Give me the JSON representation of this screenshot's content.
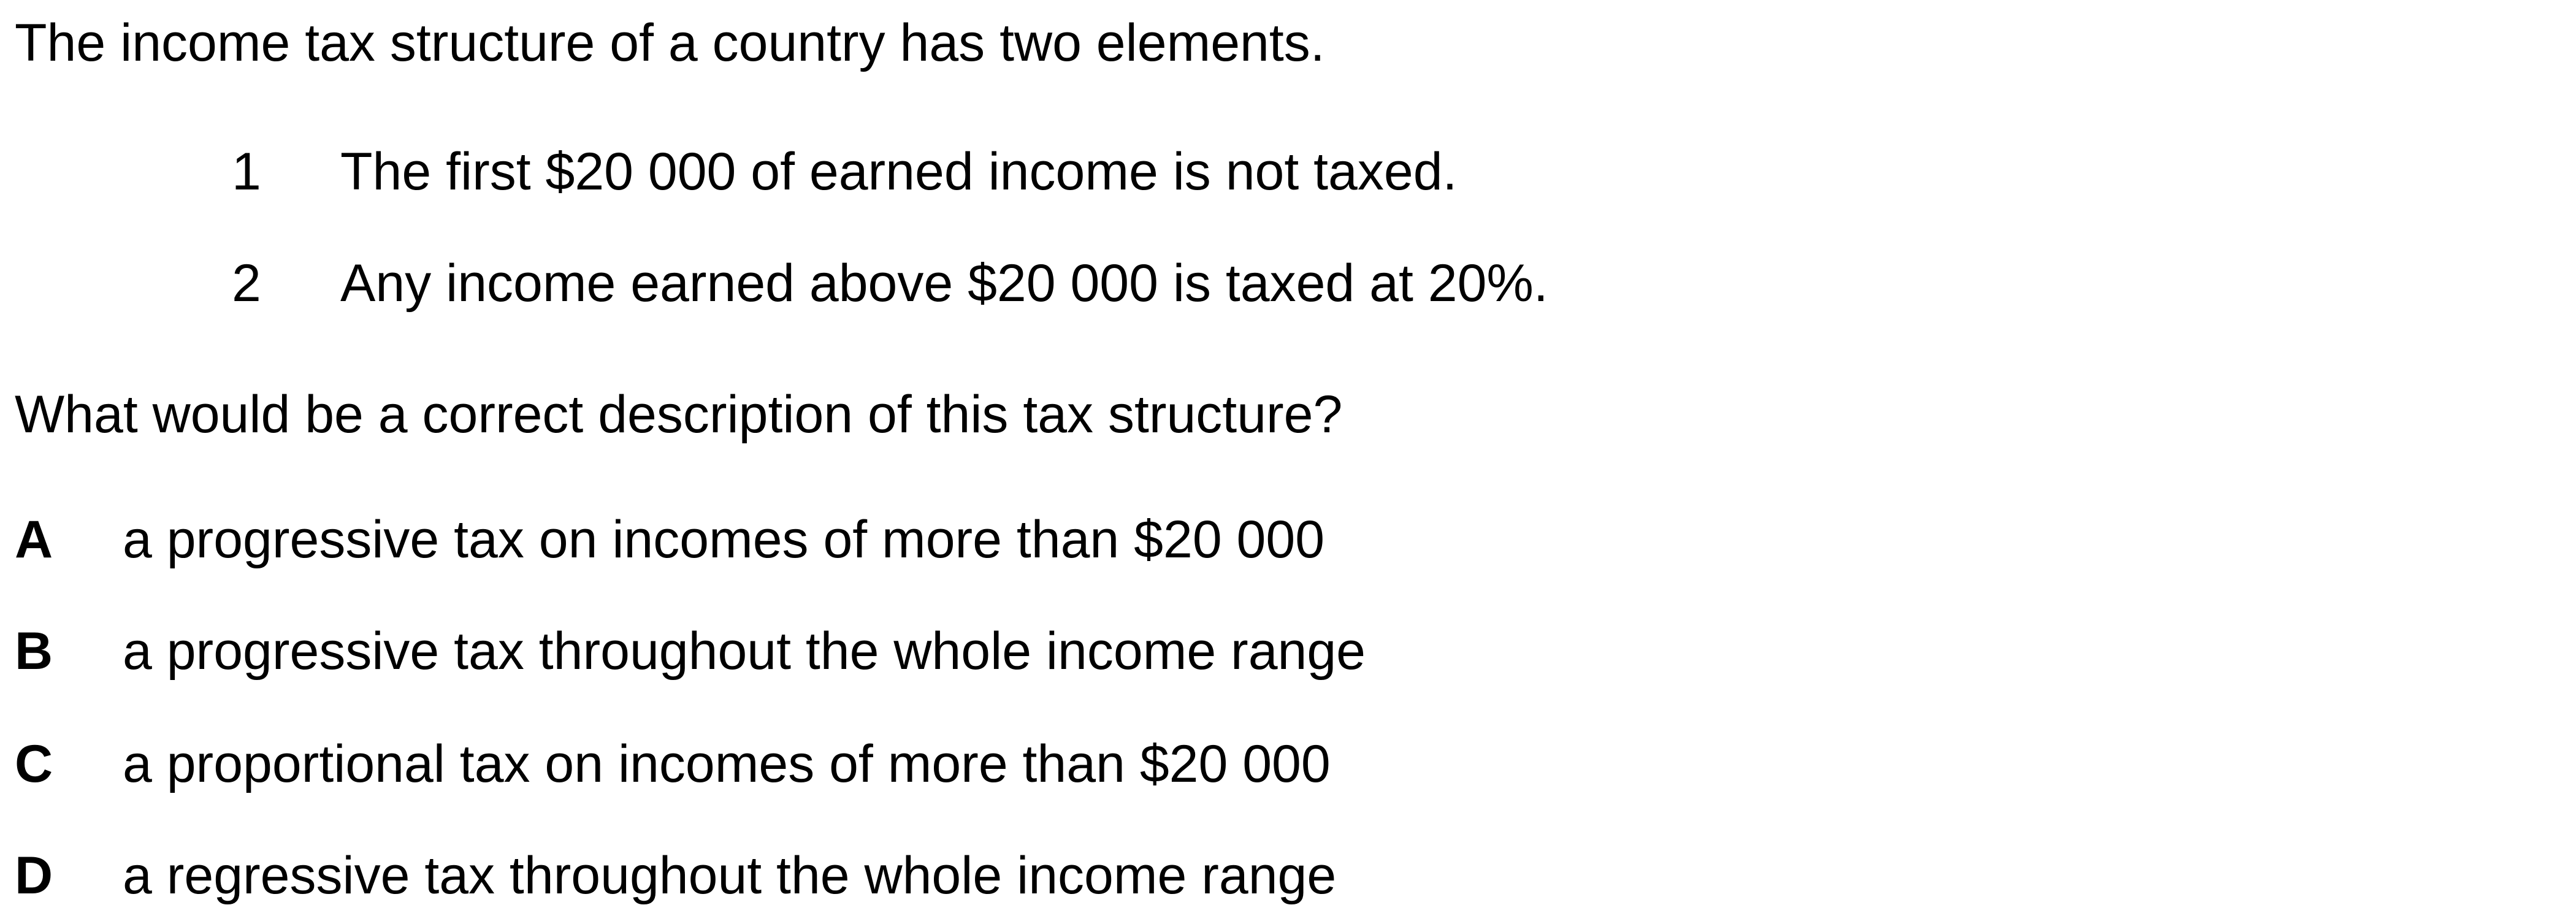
{
  "question": {
    "intro": "The income tax structure of a country has two elements.",
    "elements": [
      {
        "number": "1",
        "text": "The first $20 000 of earned income is not taxed."
      },
      {
        "number": "2",
        "text": "Any income earned above $20 000 is taxed at 20%."
      }
    ],
    "prompt": "What would be a correct description of this tax structure?",
    "options": [
      {
        "letter": "A",
        "text": "a progressive tax on incomes of more than $20 000"
      },
      {
        "letter": "B",
        "text": "a progressive tax throughout the whole income range"
      },
      {
        "letter": "C",
        "text": "a proportional tax on incomes of more than $20 000"
      },
      {
        "letter": "D",
        "text": "a regressive tax throughout the whole income range"
      }
    ]
  }
}
